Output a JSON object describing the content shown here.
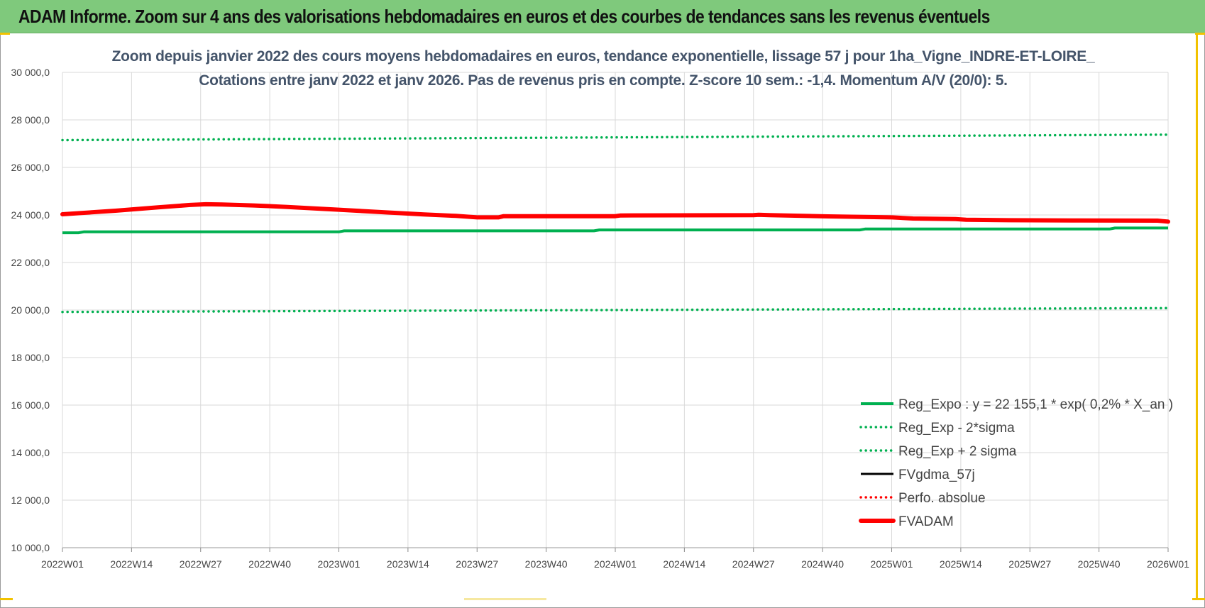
{
  "banner": {
    "title": "ADAM Informe. Zoom sur 4 ans des valorisations hebdomadaires en euros et des courbes de tendances sans les revenus éventuels"
  },
  "colors": {
    "banner_bg": "#7fc97c",
    "title_text": "#44546a",
    "reg_expo": "#00b050",
    "band": "#00b050",
    "fvgdma": "#000000",
    "perfo": "#ff0000",
    "fvadam": "#ff0000",
    "grid": "#d9d9d9"
  },
  "chart_data": {
    "type": "line",
    "title_line1": "Zoom depuis janvier 2022 des cours moyens hebdomadaires en euros, tendance exponentielle, lissage 57 j pour 1ha_Vigne_INDRE-ET-LOIRE_",
    "title_line2": "Cotations entre janv 2022 et janv 2026. Pas de revenus pris en compte. Z-score 10 sem.: -1,4. Momentum A/V (20/0): 5.",
    "y_ticks": [
      "10 000,0",
      "12 000,0",
      "14 000,0",
      "16 000,0",
      "18 000,0",
      "20 000,0",
      "22 000,0",
      "24 000,0",
      "26 000,0",
      "28 000,0",
      "30 000,0"
    ],
    "ylim": [
      10000,
      30000
    ],
    "x_ticks": [
      "2022W01",
      "2022W14",
      "2022W27",
      "2022W40",
      "2023W01",
      "2023W14",
      "2023W27",
      "2023W40",
      "2024W01",
      "2024W14",
      "2024W27",
      "2024W40",
      "2025W01",
      "2025W14",
      "2025W27",
      "2025W40",
      "2026W01"
    ],
    "x_weeks": [
      0,
      13,
      26,
      39,
      52,
      65,
      78,
      91,
      104,
      117,
      130,
      143,
      156,
      169,
      182,
      195,
      208
    ],
    "xlim": [
      0,
      208
    ],
    "legend_placement": "bottom-right",
    "series": [
      {
        "name": "Reg_Expo : y = 22 155,1 * exp( 0,2% *  X_an )",
        "style": "solid",
        "points": [
          [
            0,
            23250
          ],
          [
            3,
            23250
          ],
          [
            4,
            23290
          ],
          [
            52,
            23290
          ],
          [
            53,
            23330
          ],
          [
            100,
            23330
          ],
          [
            101,
            23370
          ],
          [
            150,
            23370
          ],
          [
            151,
            23410
          ],
          [
            197,
            23410
          ],
          [
            198,
            23450
          ],
          [
            208,
            23450
          ]
        ]
      },
      {
        "name": "Reg_Exp - 2*sigma",
        "style": "dotted",
        "points": [
          [
            0,
            19920
          ],
          [
            208,
            20080
          ]
        ]
      },
      {
        "name": "Reg_Exp + 2 sigma",
        "style": "dotted",
        "points": [
          [
            0,
            27150
          ],
          [
            208,
            27380
          ]
        ]
      },
      {
        "name": "FVgdma_57j",
        "style": "solid-thin",
        "points": [
          [
            0,
            24030
          ],
          [
            10,
            24200
          ],
          [
            18,
            24330
          ],
          [
            24,
            24420
          ],
          [
            28,
            24440
          ],
          [
            34,
            24410
          ],
          [
            42,
            24340
          ],
          [
            52,
            24200
          ],
          [
            65,
            24060
          ],
          [
            74,
            23980
          ],
          [
            78,
            23920
          ],
          [
            82,
            23930
          ],
          [
            104,
            23960
          ],
          [
            130,
            24000
          ],
          [
            144,
            23950
          ],
          [
            156,
            23900
          ],
          [
            170,
            23820
          ],
          [
            190,
            23780
          ],
          [
            206,
            23760
          ],
          [
            208,
            23730
          ]
        ]
      },
      {
        "name": "Perfo. absolue",
        "style": "dotted-red",
        "points": []
      },
      {
        "name": "FVADAM",
        "style": "solid-thick",
        "points": [
          [
            0,
            24030
          ],
          [
            10,
            24180
          ],
          [
            18,
            24320
          ],
          [
            24,
            24420
          ],
          [
            27,
            24450
          ],
          [
            30,
            24440
          ],
          [
            36,
            24400
          ],
          [
            42,
            24340
          ],
          [
            52,
            24220
          ],
          [
            60,
            24120
          ],
          [
            68,
            24020
          ],
          [
            74,
            23960
          ],
          [
            78,
            23900
          ],
          [
            82,
            23900
          ],
          [
            83,
            23950
          ],
          [
            104,
            23950
          ],
          [
            105,
            23980
          ],
          [
            130,
            23990
          ],
          [
            131,
            24010
          ],
          [
            133,
            23990
          ],
          [
            144,
            23940
          ],
          [
            156,
            23900
          ],
          [
            160,
            23850
          ],
          [
            168,
            23830
          ],
          [
            170,
            23800
          ],
          [
            178,
            23780
          ],
          [
            190,
            23770
          ],
          [
            206,
            23760
          ],
          [
            207,
            23740
          ],
          [
            208,
            23720
          ]
        ]
      }
    ]
  }
}
